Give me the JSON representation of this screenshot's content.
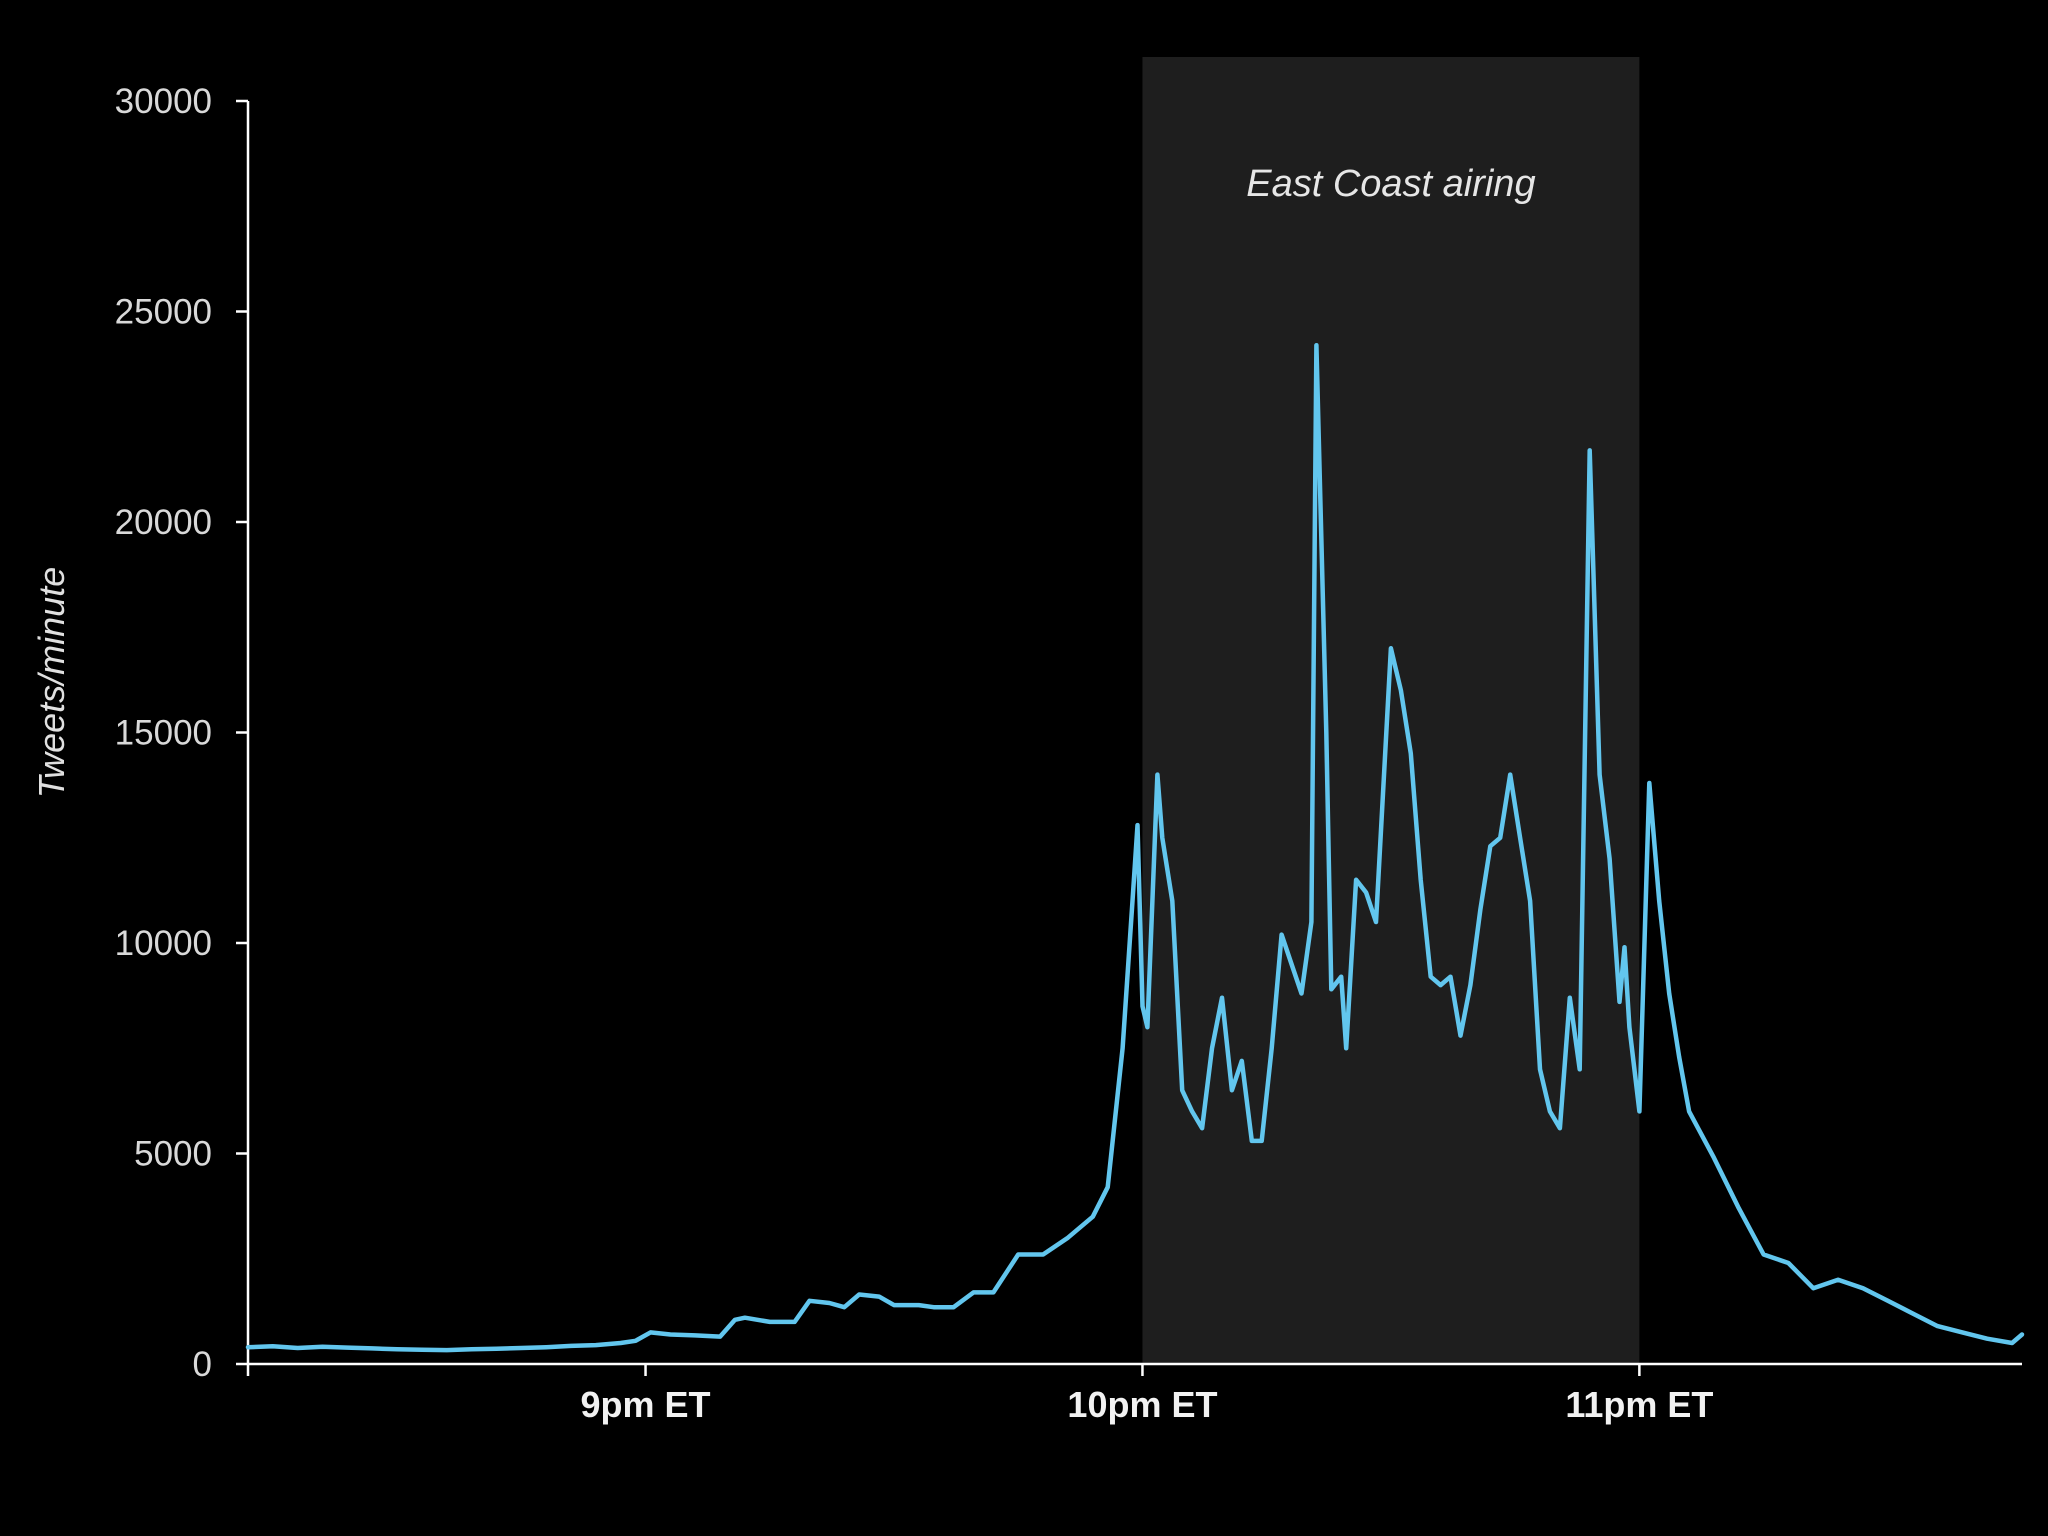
{
  "chart_data": {
    "type": "line",
    "title": "",
    "xlabel": "",
    "ylabel": "Tweets/minute",
    "ylim": [
      0,
      30000
    ],
    "y_ticks": [
      0,
      5000,
      10000,
      15000,
      20000,
      25000,
      30000
    ],
    "y_tick_labels": [
      "0",
      "5000",
      "10000",
      "15000",
      "20000",
      "25000",
      "30000"
    ],
    "x_ticks": [
      "9pm ET",
      "10pm ET",
      "11pm ET"
    ],
    "x_tick_values": [
      60,
      160,
      260
    ],
    "xlim": [
      -20,
      337
    ],
    "x_unit": "minutes after 9pm ET",
    "grid": false,
    "legend": "none",
    "highlight": {
      "label": "East Coast airing",
      "x_range": [
        160,
        260
      ],
      "color": "#1e1e1e"
    },
    "series": [
      {
        "name": "",
        "color": "#62c6ee",
        "x": [
          -20,
          -15,
          -10,
          -5,
          0,
          5,
          10,
          15,
          20,
          25,
          30,
          35,
          40,
          45,
          50,
          55,
          58,
          61,
          65,
          70,
          75,
          78,
          80,
          85,
          90,
          93,
          97,
          100,
          103,
          107,
          110,
          112,
          115,
          118,
          122,
          126,
          130,
          135,
          140,
          145,
          150,
          153,
          156,
          158,
          159,
          160,
          161,
          163,
          164,
          166,
          168,
          170,
          172,
          174,
          176,
          178,
          180,
          182,
          184,
          186,
          188,
          190,
          192,
          194,
          195,
          197,
          198,
          200,
          201,
          203,
          205,
          207,
          210,
          212,
          214,
          216,
          218,
          220,
          222,
          224,
          226,
          228,
          230,
          232,
          234,
          236,
          238,
          240,
          242,
          244,
          246,
          248,
          250,
          252,
          254,
          256,
          257,
          258,
          260,
          262,
          264,
          266,
          268,
          270,
          275,
          280,
          285,
          290,
          295,
          300,
          305,
          310,
          315,
          320,
          325,
          330,
          335,
          337
        ],
        "y": [
          400,
          420,
          380,
          410,
          390,
          370,
          350,
          340,
          330,
          350,
          360,
          380,
          400,
          430,
          450,
          500,
          550,
          750,
          700,
          680,
          650,
          1050,
          1100,
          1000,
          1000,
          1500,
          1450,
          1350,
          1650,
          1600,
          1400,
          1400,
          1400,
          1350,
          1350,
          1700,
          1700,
          2600,
          2600,
          3000,
          3500,
          4200,
          7500,
          11000,
          12800,
          8500,
          8000,
          14000,
          12500,
          11000,
          6500,
          6000,
          5600,
          7500,
          8700,
          6500,
          7200,
          5300,
          5300,
          7500,
          10200,
          9500,
          8800,
          10500,
          24200,
          15000,
          8900,
          9200,
          7500,
          11500,
          11200,
          10500,
          17000,
          16000,
          14500,
          11500,
          9200,
          9000,
          9200,
          7800,
          9000,
          10800,
          12300,
          12500,
          14000,
          12500,
          11000,
          7000,
          6000,
          5600,
          8700,
          7000,
          21700,
          14000,
          12000,
          8600,
          9900,
          8000,
          6000,
          13800,
          11000,
          8800,
          7300,
          6000,
          4900,
          3700,
          2600,
          2400,
          1800,
          2000,
          1800,
          1500,
          1200,
          900,
          750,
          600,
          500,
          700
        ]
      }
    ]
  }
}
